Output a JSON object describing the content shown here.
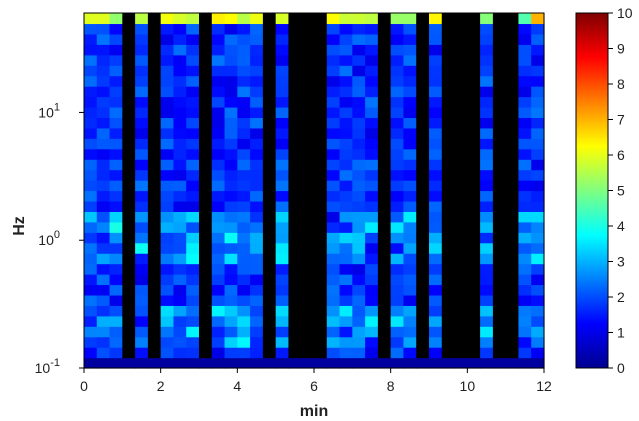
{
  "chart_data": {
    "type": "heatmap",
    "title": "",
    "xlabel": "min",
    "ylabel": "Hz",
    "x_range": [
      0,
      12
    ],
    "x_ticks": [
      "0",
      "2",
      "4",
      "6",
      "8",
      "10",
      "12"
    ],
    "y_scale": "log",
    "y_range": [
      0.1,
      60
    ],
    "y_ticks": [
      {
        "base": "10",
        "exp": "-1"
      },
      {
        "base": "10",
        "exp": "0"
      },
      {
        "base": "10",
        "exp": "1"
      }
    ],
    "colorbar": {
      "range": [
        0,
        10
      ],
      "ticks": [
        "0",
        "1",
        "2",
        "3",
        "4",
        "5",
        "6",
        "7",
        "8",
        "9",
        "10"
      ],
      "colormap": "jet"
    },
    "n_time_bins": 36,
    "n_freq_bins": 34,
    "no_data_color": "#000000",
    "no_data_x_intervals": [
      [
        0.93,
        1.27
      ],
      [
        1.6,
        1.93
      ],
      [
        3.0,
        3.27
      ],
      [
        4.6,
        4.93
      ],
      [
        5.27,
        6.27
      ],
      [
        7.6,
        7.93
      ],
      [
        8.6,
        8.93
      ],
      [
        9.27,
        10.27
      ],
      [
        10.6,
        11.27
      ]
    ],
    "values_description_only_for_rendering": ""
  }
}
